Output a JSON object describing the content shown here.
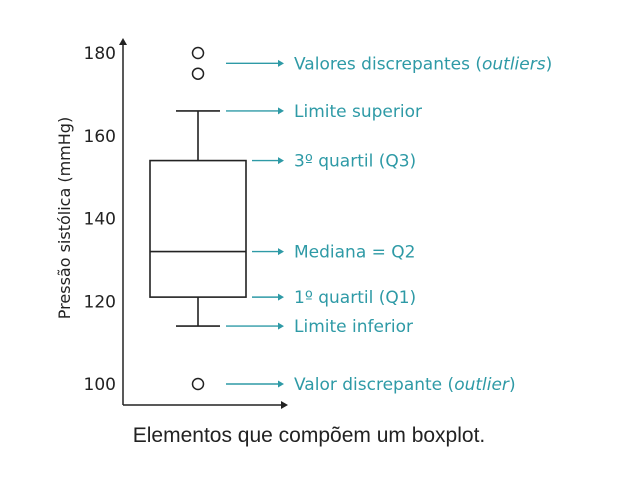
{
  "caption": "Elementos que compõem um boxplot.",
  "colors": {
    "accent": "#2e9aa6",
    "ink": "#222222"
  },
  "chart_data": {
    "type": "box",
    "ylabel": "Pressão sistólica (mmHg)",
    "xlabel": "",
    "ylim": [
      96,
      182
    ],
    "yticks": [
      100,
      120,
      140,
      160,
      180
    ],
    "grid": false,
    "box": {
      "whisker_low": 114,
      "q1": 121,
      "median": 132,
      "q3": 154,
      "whisker_high": 166,
      "outliers": [
        180,
        175,
        100
      ]
    },
    "annotations": [
      {
        "name": "annotation-outliers",
        "y": 177.5,
        "prefix": "Valores discrepantes (",
        "italic": "outliers",
        "suffix": ")"
      },
      {
        "name": "annotation-upper-limit",
        "y": 166,
        "prefix": "Limite superior",
        "italic": "",
        "suffix": ""
      },
      {
        "name": "annotation-q3",
        "y": 154,
        "prefix": "3º quartil (Q3)",
        "italic": "",
        "suffix": ""
      },
      {
        "name": "annotation-median",
        "y": 132,
        "prefix": "Mediana = Q2",
        "italic": "",
        "suffix": ""
      },
      {
        "name": "annotation-q1",
        "y": 121,
        "prefix": "1º quartil (Q1)",
        "italic": "",
        "suffix": ""
      },
      {
        "name": "annotation-lower-limit",
        "y": 114,
        "prefix": "Limite inferior",
        "italic": "",
        "suffix": ""
      },
      {
        "name": "annotation-outlier",
        "y": 100,
        "prefix": "Valor discrepante (",
        "italic": "outlier",
        "suffix": ")"
      }
    ]
  }
}
